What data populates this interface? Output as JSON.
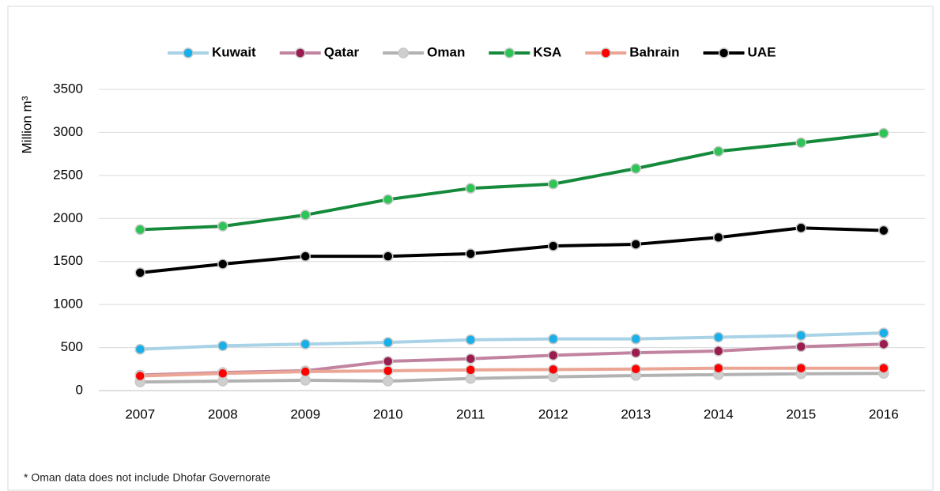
{
  "chart_data": {
    "type": "line",
    "y_label": "Million m³",
    "categories": [
      "2007",
      "2008",
      "2009",
      "2010",
      "2011",
      "2012",
      "2013",
      "2014",
      "2015",
      "2016"
    ],
    "series": [
      {
        "name": "Kuwait",
        "color": "#a8d2e5",
        "marker_color": "#19b0ea",
        "values": [
          480,
          520,
          540,
          560,
          590,
          600,
          600,
          620,
          640,
          670
        ]
      },
      {
        "name": "Qatar",
        "color": "#c283a0",
        "marker_color": "#9b1d4f",
        "values": [
          180,
          210,
          230,
          340,
          370,
          410,
          440,
          460,
          510,
          540
        ]
      },
      {
        "name": "Oman",
        "color": "#b2b2b2",
        "marker_color": "#cfcfcf",
        "values": [
          100,
          110,
          120,
          110,
          140,
          160,
          175,
          185,
          195,
          200
        ]
      },
      {
        "name": "KSA",
        "color": "#158a3b",
        "marker_color": "#2ec456",
        "values": [
          1870,
          1910,
          2040,
          2220,
          2350,
          2400,
          2580,
          2780,
          2880,
          2990
        ]
      },
      {
        "name": "Bahrain",
        "color": "#eba594",
        "marker_color": "#ff0000",
        "values": [
          170,
          200,
          220,
          230,
          240,
          245,
          250,
          260,
          260,
          260
        ]
      },
      {
        "name": "UAE",
        "color": "#000000",
        "marker_color": "#000000",
        "values": [
          1370,
          1470,
          1560,
          1560,
          1590,
          1680,
          1700,
          1780,
          1890,
          1860
        ]
      }
    ],
    "ylim": [
      0,
      3500
    ],
    "yticks": [
      0,
      500,
      1000,
      1500,
      2000,
      2500,
      3000,
      3500
    ],
    "grid": true,
    "legend": "top",
    "footnote": "* Oman data does not include Dhofar Governorate"
  }
}
